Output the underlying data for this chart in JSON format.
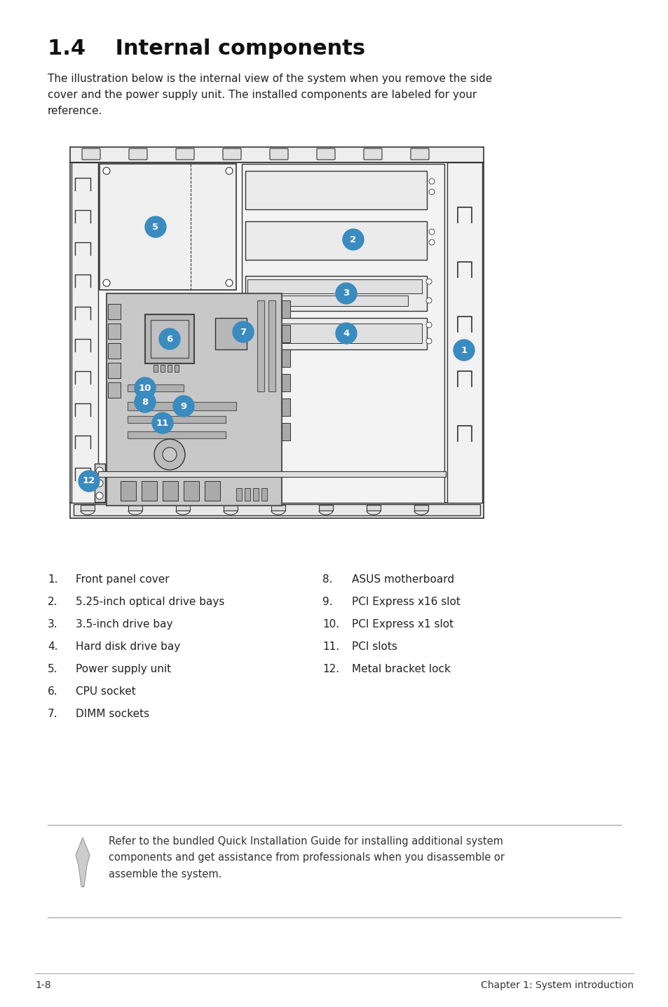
{
  "title": "1.4    Internal components",
  "intro_text": "The illustration below is the internal view of the system when you remove the side\ncover and the power supply unit. The installed components are labeled for your\nreference.",
  "bg_color": "#ffffff",
  "list_left": [
    [
      "1.",
      "Front panel cover"
    ],
    [
      "2.",
      "5.25-inch optical drive bays"
    ],
    [
      "3.",
      "3.5-inch drive bay"
    ],
    [
      "4.",
      "Hard disk drive bay"
    ],
    [
      "5.",
      "Power supply unit"
    ],
    [
      "6.",
      "CPU socket"
    ],
    [
      "7.",
      "DIMM sockets"
    ]
  ],
  "list_right": [
    [
      "8.",
      "ASUS motherboard"
    ],
    [
      "9.",
      "PCI Express x16 slot"
    ],
    [
      "10.",
      "PCI Express x1 slot"
    ],
    [
      "11.",
      "PCI slots"
    ],
    [
      "12.",
      "Metal bracket lock"
    ]
  ],
  "note_text": "Refer to the bundled Quick Installation Guide for installing additional system\ncomponents and get assistance from professionals when you disassemble or\nassemble the system.",
  "footer_left": "1-8",
  "footer_right": "Chapter 1: System introduction",
  "bubble_color": "#3a8bbf",
  "bubble_text_color": "#ffffff",
  "line_color": "#444444",
  "case_outline": "#333333",
  "mb_fill": "#c8c8c8",
  "case_fill": "#f5f5f5"
}
